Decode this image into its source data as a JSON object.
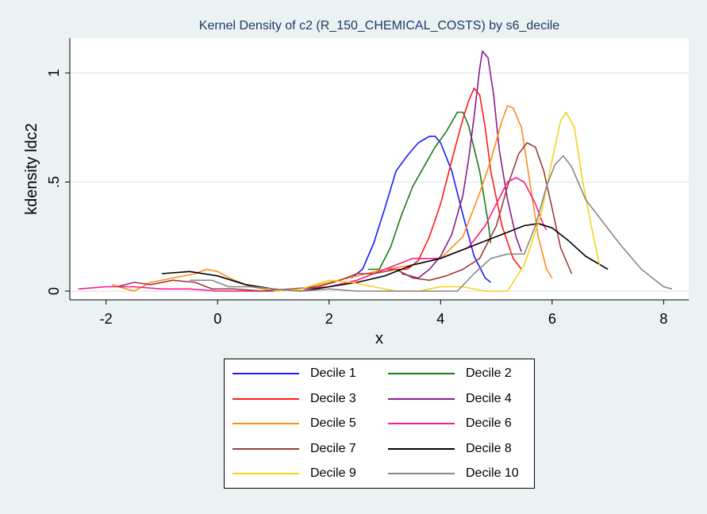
{
  "chart_data": {
    "type": "line",
    "title": "Kernel Density of c2 (R_150_CHEMICAL_COSTS) by s6_decile",
    "xlabel": "x",
    "ylabel": "kdensity ldc2",
    "xlim": [
      -2.65,
      8.45
    ],
    "ylim": [
      -0.04,
      1.16
    ],
    "x_ticks": [
      -2,
      0,
      2,
      4,
      6,
      8
    ],
    "x_tick_labels": [
      "-2",
      "0",
      "2",
      "4",
      "6",
      "8"
    ],
    "y_ticks": [
      0,
      0.5,
      1
    ],
    "y_tick_labels": [
      "0",
      ".5",
      "1"
    ],
    "grid": true,
    "legend_position": "bottom",
    "series": [
      {
        "name": "Decile 1",
        "color": "#1a1aff",
        "points": [
          [
            2.4,
            0.06
          ],
          [
            2.6,
            0.1
          ],
          [
            2.8,
            0.22
          ],
          [
            3.0,
            0.38
          ],
          [
            3.2,
            0.55
          ],
          [
            3.4,
            0.62
          ],
          [
            3.6,
            0.68
          ],
          [
            3.8,
            0.71
          ],
          [
            3.9,
            0.71
          ],
          [
            4.0,
            0.68
          ],
          [
            4.2,
            0.55
          ],
          [
            4.4,
            0.35
          ],
          [
            4.6,
            0.16
          ],
          [
            4.8,
            0.06
          ],
          [
            4.9,
            0.04
          ]
        ]
      },
      {
        "name": "Decile 2",
        "color": "#1a7a1a",
        "points": [
          [
            2.7,
            0.1
          ],
          [
            2.9,
            0.1
          ],
          [
            3.1,
            0.2
          ],
          [
            3.3,
            0.35
          ],
          [
            3.5,
            0.48
          ],
          [
            3.7,
            0.57
          ],
          [
            3.9,
            0.66
          ],
          [
            4.1,
            0.73
          ],
          [
            4.3,
            0.82
          ],
          [
            4.4,
            0.82
          ],
          [
            4.5,
            0.76
          ],
          [
            4.7,
            0.55
          ],
          [
            4.85,
            0.32
          ],
          [
            4.9,
            0.22
          ]
        ]
      },
      {
        "name": "Decile 3",
        "color": "#ff1a1a",
        "points": [
          [
            3.0,
            0.1
          ],
          [
            3.4,
            0.1
          ],
          [
            3.6,
            0.14
          ],
          [
            3.8,
            0.25
          ],
          [
            4.0,
            0.4
          ],
          [
            4.2,
            0.6
          ],
          [
            4.4,
            0.79
          ],
          [
            4.5,
            0.87
          ],
          [
            4.6,
            0.93
          ],
          [
            4.7,
            0.9
          ],
          [
            4.8,
            0.75
          ],
          [
            4.9,
            0.55
          ],
          [
            5.1,
            0.3
          ],
          [
            5.3,
            0.15
          ],
          [
            5.45,
            0.1
          ]
        ]
      },
      {
        "name": "Decile 4",
        "color": "#8b1a8b",
        "points": [
          [
            3.3,
            0.08
          ],
          [
            3.6,
            0.06
          ],
          [
            3.8,
            0.1
          ],
          [
            4.0,
            0.16
          ],
          [
            4.2,
            0.26
          ],
          [
            4.4,
            0.44
          ],
          [
            4.5,
            0.6
          ],
          [
            4.6,
            0.8
          ],
          [
            4.7,
            1.02
          ],
          [
            4.75,
            1.1
          ],
          [
            4.85,
            1.07
          ],
          [
            4.95,
            0.9
          ],
          [
            5.05,
            0.65
          ],
          [
            5.2,
            0.42
          ],
          [
            5.35,
            0.25
          ],
          [
            5.45,
            0.18
          ]
        ]
      },
      {
        "name": "Decile 5",
        "color": "#ff8c1a",
        "points": [
          [
            -1.9,
            0.03
          ],
          [
            -1.5,
            0.0
          ],
          [
            -1.2,
            0.04
          ],
          [
            -0.8,
            0.06
          ],
          [
            -0.4,
            0.08
          ],
          [
            -0.2,
            0.1
          ],
          [
            0.0,
            0.09
          ],
          [
            0.3,
            0.05
          ],
          [
            0.6,
            0.02
          ],
          [
            1.0,
            0.0
          ],
          [
            1.5,
            0.01
          ],
          [
            2.0,
            0.04
          ],
          [
            2.5,
            0.07
          ],
          [
            3.0,
            0.1
          ],
          [
            3.5,
            0.12
          ],
          [
            4.0,
            0.15
          ],
          [
            4.4,
            0.25
          ],
          [
            4.7,
            0.45
          ],
          [
            4.9,
            0.6
          ],
          [
            5.1,
            0.78
          ],
          [
            5.2,
            0.85
          ],
          [
            5.3,
            0.84
          ],
          [
            5.45,
            0.75
          ],
          [
            5.6,
            0.5
          ],
          [
            5.75,
            0.25
          ],
          [
            5.9,
            0.1
          ],
          [
            6.0,
            0.06
          ]
        ]
      },
      {
        "name": "Decile 6",
        "color": "#ff1a8c",
        "points": [
          [
            -2.5,
            0.01
          ],
          [
            -2.0,
            0.02
          ],
          [
            -1.5,
            0.02
          ],
          [
            -1.0,
            0.01
          ],
          [
            -0.5,
            0.01
          ],
          [
            0.0,
            0.0
          ],
          [
            0.5,
            0.0
          ],
          [
            1.0,
            0.0
          ],
          [
            1.5,
            0.01
          ],
          [
            2.0,
            0.02
          ],
          [
            2.5,
            0.05
          ],
          [
            3.0,
            0.1
          ],
          [
            3.5,
            0.15
          ],
          [
            4.0,
            0.15
          ],
          [
            4.5,
            0.2
          ],
          [
            4.8,
            0.3
          ],
          [
            5.0,
            0.4
          ],
          [
            5.2,
            0.5
          ],
          [
            5.35,
            0.52
          ],
          [
            5.5,
            0.5
          ],
          [
            5.7,
            0.4
          ],
          [
            5.85,
            0.3
          ],
          [
            5.9,
            0.28
          ]
        ]
      },
      {
        "name": "Decile 7",
        "color": "#9b3c3c",
        "points": [
          [
            -1.8,
            0.02
          ],
          [
            -1.5,
            0.04
          ],
          [
            -1.2,
            0.03
          ],
          [
            -0.8,
            0.05
          ],
          [
            -0.4,
            0.04
          ],
          [
            -0.1,
            0.01
          ],
          [
            0.3,
            0.01
          ],
          [
            0.8,
            0.0
          ],
          [
            1.3,
            0.01
          ],
          [
            1.8,
            0.02
          ],
          [
            2.2,
            0.05
          ],
          [
            2.5,
            0.08
          ],
          [
            2.8,
            0.08
          ],
          [
            3.2,
            0.1
          ],
          [
            3.5,
            0.06
          ],
          [
            3.8,
            0.05
          ],
          [
            4.1,
            0.07
          ],
          [
            4.4,
            0.1
          ],
          [
            4.7,
            0.15
          ],
          [
            5.0,
            0.3
          ],
          [
            5.2,
            0.48
          ],
          [
            5.4,
            0.63
          ],
          [
            5.55,
            0.68
          ],
          [
            5.7,
            0.66
          ],
          [
            5.85,
            0.55
          ],
          [
            6.0,
            0.38
          ],
          [
            6.15,
            0.2
          ],
          [
            6.35,
            0.08
          ]
        ]
      },
      {
        "name": "Decile 8",
        "color": "#000000",
        "points": [
          [
            -1.0,
            0.08
          ],
          [
            -0.5,
            0.09
          ],
          [
            0.0,
            0.07
          ],
          [
            0.5,
            0.03
          ],
          [
            1.0,
            0.01
          ],
          [
            1.5,
            0.0
          ],
          [
            2.0,
            0.02
          ],
          [
            2.5,
            0.04
          ],
          [
            3.0,
            0.07
          ],
          [
            3.5,
            0.12
          ],
          [
            4.0,
            0.15
          ],
          [
            4.5,
            0.2
          ],
          [
            5.0,
            0.25
          ],
          [
            5.5,
            0.3
          ],
          [
            5.75,
            0.31
          ],
          [
            6.0,
            0.29
          ],
          [
            6.3,
            0.23
          ],
          [
            6.6,
            0.16
          ],
          [
            7.0,
            0.1
          ]
        ]
      },
      {
        "name": "Decile 9",
        "color": "#f5d21a",
        "points": [
          [
            1.0,
            0.0
          ],
          [
            1.5,
            0.01
          ],
          [
            2.0,
            0.05
          ],
          [
            2.4,
            0.04
          ],
          [
            2.8,
            0.02
          ],
          [
            3.2,
            0.0
          ],
          [
            3.6,
            0.0
          ],
          [
            4.0,
            0.02
          ],
          [
            4.4,
            0.02
          ],
          [
            4.8,
            0.0
          ],
          [
            5.2,
            0.0
          ],
          [
            5.5,
            0.12
          ],
          [
            5.8,
            0.35
          ],
          [
            6.0,
            0.6
          ],
          [
            6.15,
            0.78
          ],
          [
            6.25,
            0.82
          ],
          [
            6.4,
            0.75
          ],
          [
            6.55,
            0.5
          ],
          [
            6.7,
            0.3
          ],
          [
            6.85,
            0.12
          ]
        ]
      },
      {
        "name": "Decile 10",
        "color": "#888888",
        "points": [
          [
            -0.5,
            0.05
          ],
          [
            -0.1,
            0.05
          ],
          [
            0.2,
            0.02
          ],
          [
            0.6,
            0.02
          ],
          [
            1.0,
            0.01
          ],
          [
            1.5,
            0.0
          ],
          [
            2.0,
            0.01
          ],
          [
            2.5,
            0.0
          ],
          [
            3.0,
            0.0
          ],
          [
            3.5,
            0.0
          ],
          [
            4.0,
            0.0
          ],
          [
            4.3,
            0.0
          ],
          [
            4.6,
            0.08
          ],
          [
            4.9,
            0.15
          ],
          [
            5.2,
            0.17
          ],
          [
            5.5,
            0.17
          ],
          [
            5.7,
            0.3
          ],
          [
            5.9,
            0.48
          ],
          [
            6.05,
            0.58
          ],
          [
            6.2,
            0.62
          ],
          [
            6.35,
            0.57
          ],
          [
            6.6,
            0.42
          ],
          [
            6.9,
            0.32
          ],
          [
            7.2,
            0.22
          ],
          [
            7.6,
            0.1
          ],
          [
            8.0,
            0.02
          ],
          [
            8.15,
            0.01
          ]
        ]
      }
    ]
  }
}
